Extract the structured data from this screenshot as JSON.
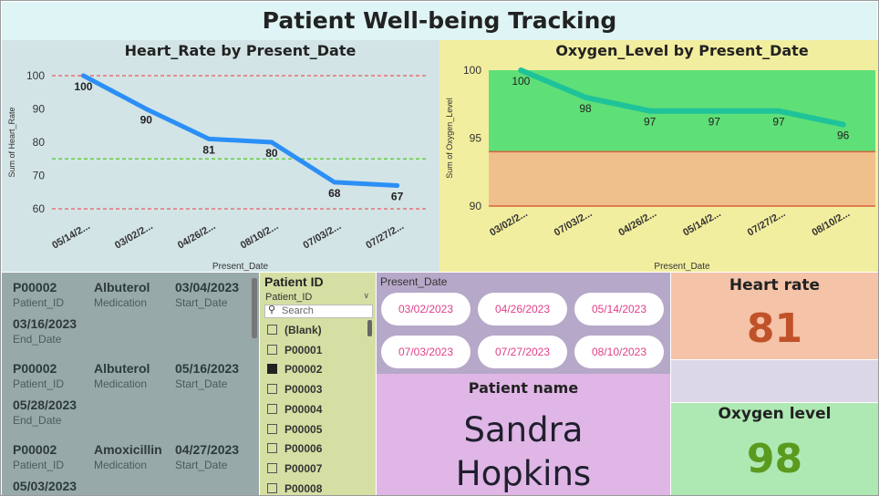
{
  "title": "Patient Well-being Tracking",
  "colors": {
    "hr_line": "#2b8ff6",
    "ox_line": "#1ec39a",
    "hr_value": "#c0522a",
    "ox_value": "#5a9a1e",
    "chip_text": "#e0408a"
  },
  "chart_data": [
    {
      "type": "line",
      "title": "Heart_Rate by Present_Date",
      "xlabel": "Present_Date",
      "ylabel": "Sum of Heart_Rate",
      "categories": [
        "05/14/2...",
        "03/02/2...",
        "04/26/2...",
        "08/10/2...",
        "07/03/2...",
        "07/27/2..."
      ],
      "series": [
        {
          "values": [
            100,
            90,
            81,
            80,
            68,
            67
          ]
        }
      ],
      "ylim": [
        57,
        103
      ],
      "yticks": [
        "100",
        "90",
        "80",
        "70",
        "60"
      ],
      "reference_lines": [
        {
          "value": 100,
          "color": "#e57373",
          "style": "dashed"
        },
        {
          "value": 75,
          "color": "#66cc44",
          "style": "dashed"
        },
        {
          "value": 60,
          "color": "#e57373",
          "style": "dashed"
        }
      ],
      "data_labels": true
    },
    {
      "type": "line",
      "title": "Oxygen_Level by Present_Date",
      "xlabel": "Present_Date",
      "ylabel": "Sum of Oxygen_Level",
      "categories": [
        "03/02/2...",
        "07/03/2...",
        "04/26/2...",
        "05/14/2...",
        "07/27/2...",
        "08/10/2..."
      ],
      "series": [
        {
          "values": [
            100,
            98,
            97,
            97,
            97,
            96
          ]
        }
      ],
      "ylim": [
        90,
        100
      ],
      "yticks": [
        "100",
        "95",
        "90"
      ],
      "bands": [
        {
          "from": 94,
          "to": 100,
          "color": "#5fdf77"
        },
        {
          "from": 90,
          "to": 94,
          "color": "#f0c08c"
        }
      ],
      "band_lines": [
        {
          "value": 94,
          "color": "#d9603a"
        },
        {
          "value": 90,
          "color": "#d9603a"
        }
      ],
      "data_labels": true
    }
  ],
  "medications": {
    "labels": {
      "patient_id": "Patient_ID",
      "medication": "Medication",
      "start_date": "Start_Date",
      "end_date": "End_Date"
    },
    "rows": [
      {
        "patient_id": "P00002",
        "medication": "Albuterol",
        "start_date": "03/04/2023",
        "end_date": "03/16/2023"
      },
      {
        "patient_id": "P00002",
        "medication": "Albuterol",
        "start_date": "05/16/2023",
        "end_date": "05/28/2023"
      },
      {
        "patient_id": "P00002",
        "medication": "Amoxicillin",
        "start_date": "04/27/2023",
        "end_date": "05/03/2023"
      }
    ]
  },
  "patient_slicer": {
    "title": "Patient ID",
    "field": "Patient_ID",
    "search_placeholder": "Search",
    "items": [
      {
        "label": "(Blank)",
        "checked": false
      },
      {
        "label": "P00001",
        "checked": false
      },
      {
        "label": "P00002",
        "checked": true
      },
      {
        "label": "P00003",
        "checked": false
      },
      {
        "label": "P00004",
        "checked": false
      },
      {
        "label": "P00005",
        "checked": false
      },
      {
        "label": "P00006",
        "checked": false
      },
      {
        "label": "P00007",
        "checked": false
      },
      {
        "label": "P00008",
        "checked": false
      }
    ]
  },
  "date_slicer": {
    "title": "Present_Date",
    "dates": [
      "03/02/2023",
      "04/26/2023",
      "05/14/2023",
      "07/03/2023",
      "07/27/2023",
      "08/10/2023"
    ]
  },
  "patient_name": {
    "label": "Patient name",
    "value": "Sandra Hopkins"
  },
  "heart_rate": {
    "label": "Heart rate",
    "value": "81"
  },
  "oxygen_level": {
    "label": "Oxygen level",
    "value": "98"
  }
}
